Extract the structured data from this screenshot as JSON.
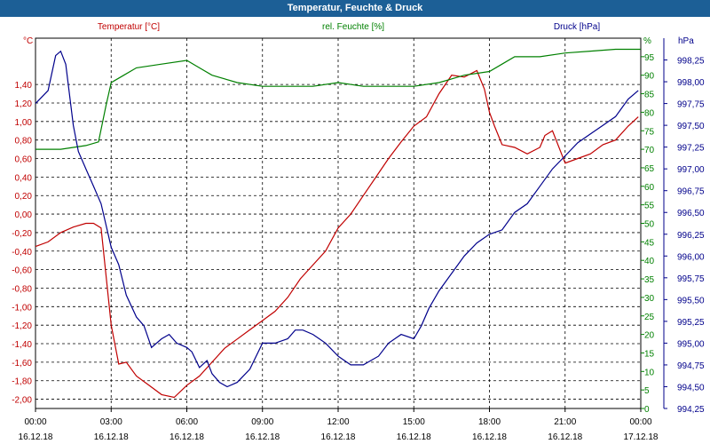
{
  "window": {
    "title": "Temperatur, Feuchte & Druck"
  },
  "chart_data": {
    "type": "line",
    "title": "Temperatur, Feuchte & Druck",
    "x_labels": [
      "00:00|16.12.18",
      "03:00|16.12.18",
      "06:00|16.12.18",
      "09:00|16.12.18",
      "12:00|16.12.18",
      "15:00|16.12.18",
      "18:00|16.12.18",
      "21:00|16.12.18",
      "00:00|17.12.18"
    ],
    "xlim": [
      0,
      24
    ],
    "grid": true,
    "axes": {
      "temperature": {
        "label": "Temperatur [°C]",
        "unit": "°C",
        "color": "#c00000",
        "ylim": [
          -2.1,
          1.9
        ],
        "ticks": [
          "1,40",
          "1,20",
          "1,00",
          "0,80",
          "0,60",
          "0,40",
          "0,20",
          "0,00",
          "-0,20",
          "-0,40",
          "-0,60",
          "-0,80",
          "-1,00",
          "-1,20",
          "-1,40",
          "-1,60",
          "-1,80",
          "-2,00"
        ],
        "tick_values": [
          1.4,
          1.2,
          1.0,
          0.8,
          0.6,
          0.4,
          0.2,
          0.0,
          -0.2,
          -0.4,
          -0.6,
          -0.8,
          -1.0,
          -1.2,
          -1.4,
          -1.6,
          -1.8,
          -2.0
        ]
      },
      "humidity": {
        "label": "rel. Feuchte [%]",
        "unit": "%",
        "color": "#008000",
        "ylim": [
          0,
          100
        ],
        "ticks": [
          "95",
          "90",
          "85",
          "80",
          "75",
          "70",
          "65",
          "60",
          "55",
          "50",
          "45",
          "40",
          "35",
          "30",
          "25",
          "20",
          "15",
          "10",
          "5",
          "0"
        ],
        "tick_values": [
          95,
          90,
          85,
          80,
          75,
          70,
          65,
          60,
          55,
          50,
          45,
          40,
          35,
          30,
          25,
          20,
          15,
          10,
          5,
          0
        ]
      },
      "pressure": {
        "label": "Druck [hPa]",
        "unit": "hPa",
        "color": "#00008b",
        "ylim": [
          994.25,
          998.5
        ],
        "ticks": [
          "998,25",
          "998,00",
          "997,75",
          "997,50",
          "997,25",
          "997,00",
          "996,75",
          "996,50",
          "996,25",
          "996,00",
          "995,75",
          "995,50",
          "995,25",
          "995,00",
          "994,75",
          "994,50",
          "994,25"
        ],
        "tick_values": [
          998.25,
          998.0,
          997.75,
          997.5,
          997.25,
          997.0,
          996.75,
          996.5,
          996.25,
          996.0,
          995.75,
          995.5,
          995.25,
          995.0,
          994.75,
          994.5,
          994.25
        ]
      }
    },
    "series": [
      {
        "name": "Temperatur [°C]",
        "axis": "temperature",
        "color": "#c00000",
        "x": [
          0,
          0.5,
          1,
          1.5,
          2,
          2.3,
          2.6,
          3.0,
          3.3,
          3.6,
          4.0,
          4.5,
          5.0,
          5.5,
          6.0,
          6.5,
          7.0,
          7.5,
          8.0,
          8.5,
          9.0,
          9.5,
          10.0,
          10.5,
          11.0,
          11.5,
          12.0,
          12.5,
          13.0,
          13.5,
          14.0,
          14.5,
          15.0,
          15.5,
          16.0,
          16.5,
          17.0,
          17.5,
          17.8,
          18.0,
          18.2,
          18.5,
          19.0,
          19.5,
          20.0,
          20.2,
          20.5,
          21.0,
          21.5,
          22.0,
          22.5,
          23.0,
          23.5,
          23.9
        ],
        "y": [
          -0.35,
          -0.3,
          -0.2,
          -0.14,
          -0.1,
          -0.1,
          -0.15,
          -1.2,
          -1.62,
          -1.6,
          -1.75,
          -1.85,
          -1.95,
          -1.98,
          -1.85,
          -1.75,
          -1.6,
          -1.45,
          -1.35,
          -1.25,
          -1.15,
          -1.05,
          -0.9,
          -0.7,
          -0.55,
          -0.4,
          -0.15,
          0.0,
          0.2,
          0.4,
          0.6,
          0.78,
          0.95,
          1.05,
          1.3,
          1.5,
          1.48,
          1.55,
          1.35,
          1.1,
          0.95,
          0.75,
          0.72,
          0.65,
          0.72,
          0.85,
          0.9,
          0.55,
          0.6,
          0.65,
          0.75,
          0.8,
          0.95,
          1.05
        ]
      },
      {
        "name": "rel. Feuchte [%]",
        "axis": "humidity",
        "color": "#008000",
        "x": [
          0,
          1,
          2,
          2.5,
          2.8,
          3.0,
          3.5,
          4.0,
          5.0,
          6.0,
          6.5,
          7.0,
          8.0,
          9.0,
          10.0,
          11.0,
          12.0,
          13.0,
          14.0,
          15.0,
          16.0,
          17.0,
          18.0,
          18.5,
          19.0,
          20.0,
          21.0,
          22.0,
          23.0,
          24.0
        ],
        "y": [
          70,
          70,
          71,
          72,
          82,
          88,
          90,
          92,
          93,
          94,
          92,
          90,
          88,
          87,
          87,
          87,
          88,
          87,
          87,
          87,
          88,
          90,
          91,
          93,
          95,
          95,
          96,
          96.5,
          97,
          97
        ],
        "note": ""
      },
      {
        "name": "Druck [hPa]",
        "axis": "pressure",
        "color": "#00008b",
        "x": [
          0,
          0.5,
          0.8,
          1.0,
          1.2,
          1.5,
          1.7,
          2.0,
          2.3,
          2.6,
          3.0,
          3.3,
          3.6,
          4.0,
          4.3,
          4.6,
          5.0,
          5.3,
          5.6,
          6.0,
          6.2,
          6.5,
          6.8,
          7.0,
          7.3,
          7.6,
          8.0,
          8.5,
          9.0,
          9.5,
          10.0,
          10.3,
          10.6,
          11.0,
          11.5,
          12.0,
          12.5,
          13.0,
          13.3,
          13.6,
          14.0,
          14.5,
          15.0,
          15.3,
          15.6,
          16.0,
          16.5,
          17.0,
          17.5,
          18.0,
          18.5,
          19.0,
          19.5,
          20.0,
          20.5,
          21.0,
          21.5,
          22.0,
          22.5,
          23.0,
          23.5,
          23.9
        ],
        "y": [
          997.75,
          997.9,
          998.3,
          998.35,
          998.2,
          997.5,
          997.2,
          997.0,
          996.8,
          996.6,
          996.1,
          995.9,
          995.55,
          995.3,
          995.2,
          994.95,
          995.05,
          995.1,
          995.0,
          994.95,
          994.9,
          994.72,
          994.8,
          994.65,
          994.55,
          994.5,
          994.55,
          994.7,
          995.0,
          995.0,
          995.05,
          995.15,
          995.15,
          995.1,
          995.0,
          994.85,
          994.75,
          994.75,
          994.8,
          994.85,
          995.0,
          995.1,
          995.05,
          995.2,
          995.4,
          995.6,
          995.8,
          996.0,
          996.15,
          996.25,
          996.3,
          996.5,
          996.6,
          996.8,
          997.0,
          997.15,
          997.3,
          997.4,
          997.5,
          997.6,
          997.8,
          997.9
        ]
      }
    ]
  }
}
